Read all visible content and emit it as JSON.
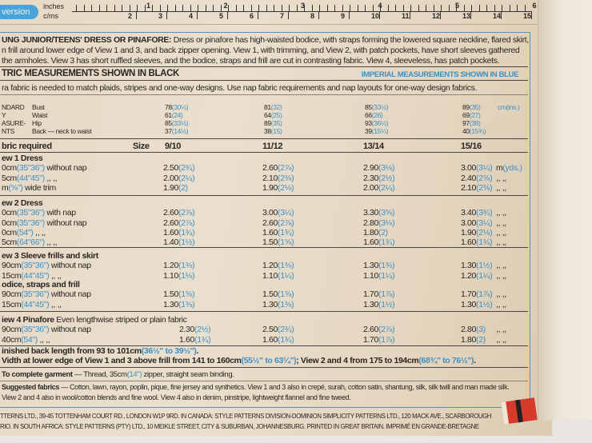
{
  "ruler": {
    "tab": "version",
    "inches_label": "inches",
    "cms_label": "c/ms",
    "inch_numbers": [
      "1",
      "2",
      "3",
      "4",
      "5",
      "6"
    ],
    "cm_numbers": [
      "2",
      "3",
      "4",
      "5",
      "6",
      "7",
      "8",
      "9",
      "10",
      "11",
      "12",
      "13",
      "14",
      "15"
    ]
  },
  "description": {
    "title": "UNG JUNIOR/TEENS' DRESS OR PINAFORE:",
    "line1": " Dress or pinafore has high-waisted bodice, with straps forming the lowered square neckline, flared skirt,",
    "line2": "n frill around lower edge of View 1 and 3, and back zipper opening. View 1, with trimming, and View 2, with patch pockets, have short sleeves gathered",
    "line3": "the armholes. View 3 has short ruffled sleeves, and the bodice, straps and frill are cut in contrasting fabric. View 4, sleeveless, has patch pockets."
  },
  "headings": {
    "metric": "TRIC MEASUREMENTS SHOWN IN BLACK",
    "imperial": "IMPERIAL MEASUREMENTS SHOWN IN BLUE",
    "note": "ra fabric is needed to match plaids, stripes and one-way designs. Use nap fabric requirements and nap layouts for one-way design fabrics."
  },
  "body_measurements": {
    "side_label": [
      "NDARD",
      "Y",
      "ASURE-",
      "NTS"
    ],
    "unit": "cm(ins.)",
    "rows": [
      {
        "label": "Bust",
        "values": [
          [
            "78",
            "(30½)"
          ],
          [
            "81",
            "(32)"
          ],
          [
            "85",
            "(33½)"
          ],
          [
            "89",
            "(35)"
          ]
        ]
      },
      {
        "label": "Waist",
        "values": [
          [
            "61",
            "(24)"
          ],
          [
            "64",
            "(25)"
          ],
          [
            "66",
            "(26)"
          ],
          [
            "69",
            "(27)"
          ]
        ]
      },
      {
        "label": "Hip",
        "values": [
          [
            "85",
            "(33½)"
          ],
          [
            "89",
            "(35)"
          ],
          [
            "93",
            "(36½)"
          ],
          [
            "97",
            "(38)"
          ]
        ]
      },
      {
        "label": "Back — neck to waist",
        "values": [
          [
            "37",
            "(14½)"
          ],
          [
            "38",
            "(15)"
          ],
          [
            "39",
            "(15¼)"
          ],
          [
            "40",
            "(15¾)"
          ]
        ]
      }
    ]
  },
  "fabric_table": {
    "title": "bric required",
    "size_label": "Size",
    "sizes": [
      "9/10",
      "11/12",
      "13/14",
      "15/16"
    ],
    "sections": [
      {
        "heading": "ew 1  Dress",
        "rows": [
          {
            "m": "0cm",
            "i": "(35\"36\")",
            "t": " without nap",
            "values": [
              [
                "2.50",
                "(2¾)"
              ],
              [
                "2.60",
                "(2⅞)"
              ],
              [
                "2.90",
                "(3⅛)"
              ],
              [
                "3.00",
                "(3¼)"
              ]
            ],
            "unit_m": "m",
            "unit_i": "(yds.)"
          },
          {
            "m": "5cm",
            "i": "(44\"45\")",
            "t": "    ,,    ,,",
            "values": [
              [
                "2.00",
                "(2¼)"
              ],
              [
                "2.10",
                "(2⅜)"
              ],
              [
                "2.30",
                "(2½)"
              ],
              [
                "2.40",
                "(2⅝)"
              ]
            ],
            "unit_m": ",,  ,,"
          },
          {
            "m": "m",
            "i": "(⅝\")",
            "t": " wide trim",
            "values": [
              [
                "1.90",
                "(2)"
              ],
              [
                "1.90",
                "(2⅛)"
              ],
              [
                "2.00",
                "(2¼)"
              ],
              [
                "2.10",
                "(2⅜)"
              ]
            ],
            "unit_m": ",,  ,,"
          }
        ]
      },
      {
        "heading": "ew 2  Dress",
        "rows": [
          {
            "m": "0cm",
            "i": "(35\"36\")",
            "t": " with nap",
            "values": [
              [
                "2.60",
                "(2⅞)"
              ],
              [
                "3.00",
                "(3¼)"
              ],
              [
                "3.30",
                "(3⅝)"
              ],
              [
                "3.40",
                "(3¾)"
              ]
            ],
            "unit_m": ",,  ,,"
          },
          {
            "m": "0cm",
            "i": "(35\"36\")",
            "t": " without nap",
            "values": [
              [
                "2.60",
                "(2⅞)"
              ],
              [
                "2.60",
                "(2⅞)"
              ],
              [
                "2.80",
                "(3⅛)"
              ],
              [
                "3.00",
                "(3¼)"
              ]
            ],
            "unit_m": ",,  ,,"
          },
          {
            "m": "0cm",
            "i": "(54\")",
            "t": "        ,,    ,,",
            "values": [
              [
                "1.60",
                "(1¾)"
              ],
              [
                "1.60",
                "(1¾)"
              ],
              [
                "1.80",
                "(2)"
              ],
              [
                "1.90",
                "(2⅛)"
              ]
            ],
            "unit_m": ",,  ,,"
          },
          {
            "m": "5cm",
            "i": "(64\"66\")",
            "t": "    ,,    ,,",
            "values": [
              [
                "1.40",
                "(1½)"
              ],
              [
                "1.50",
                "(1⅝)"
              ],
              [
                "1.60",
                "(1¾)"
              ],
              [
                "1.60",
                "(1¾)"
              ]
            ],
            "unit_m": ",,  ,,"
          }
        ]
      },
      {
        "heading": "ew 3  Sleeve frills and skirt",
        "rows": [
          {
            "m": "90cm",
            "i": "(35\"36\")",
            "t": " without nap",
            "values": [
              [
                "1.20",
                "(1⅜)"
              ],
              [
                "1.20",
                "(1⅜)"
              ],
              [
                "1.30",
                "(1⅜)"
              ],
              [
                "1.30",
                "(1½)"
              ]
            ],
            "unit_m": ",,  ,,"
          },
          {
            "m": "15cm",
            "i": "(44\"45\")",
            "t": "    ,,    ,,",
            "values": [
              [
                "1.10",
                "(1⅛)"
              ],
              [
                "1.10",
                "(1¼)"
              ],
              [
                "1.10",
                "(1¼)"
              ],
              [
                "1.20",
                "(1¼)"
              ]
            ],
            "unit_m": ",,  ,,"
          }
        ]
      },
      {
        "heading": "odice, straps and frill",
        "rows": [
          {
            "m": "90cm",
            "i": "(35\"36\")",
            "t": " without nap",
            "values": [
              [
                "1.50",
                "(1⅝)"
              ],
              [
                "1.50",
                "(1⅝)"
              ],
              [
                "1.70",
                "(1⅞)"
              ],
              [
                "1.70",
                "(1⅞)"
              ]
            ],
            "unit_m": ",,  ,,"
          },
          {
            "m": "15cm",
            "i": "(44\"45\")",
            "t": "    ,,    ,,",
            "values": [
              [
                "1.30",
                "(1⅜)"
              ],
              [
                "1.30",
                "(1⅜)"
              ],
              [
                "1.30",
                "(1½)"
              ],
              [
                "1.30",
                "(1½)"
              ]
            ],
            "unit_m": ",,  ,,"
          }
        ]
      },
      {
        "heading": "iew 4  Pinafore",
        "subheading": "  Even lengthwise striped or plain fabric",
        "rows": [
          {
            "m": "90cm",
            "i": "(35\"36\")",
            "t": " without nap",
            "values": [
              [
                "2.30",
                "(2½)"
              ],
              [
                "2.50",
                "(2¾)"
              ],
              [
                "2.60",
                "(2⅞)"
              ],
              [
                "2.80",
                "(3)"
              ]
            ],
            "unit_m": ",,  ,,"
          },
          {
            "m": "40cm",
            "i": "(54\")",
            "t": "        ,,    ,,",
            "values": [
              [
                "1.60",
                "(1¾)"
              ],
              [
                "1.60",
                "(1¾)"
              ],
              [
                "1.70",
                "(1⅞)"
              ],
              [
                "1.80",
                "(2)"
              ]
            ],
            "unit_m": ",,  ,,"
          }
        ]
      }
    ]
  },
  "finished": {
    "back_a": "inished back length from 93 to 101cm",
    "back_b": "(36½\" to 39½\")",
    "back_c": ".",
    "width_a": "Vidth at lower edge of View 1 and 3 above frill from 141 to 160cm",
    "width_b": "(55½\" to 63¼\")",
    "width_c": "; View 2 and 4 from 175 to 194cm",
    "width_d": "(68¾\" to 76½\")",
    "width_e": "."
  },
  "complete": {
    "label": "To complete garment",
    "a": " — Thread, 35cm",
    "b": "(14\")",
    "c": " zipper, straight seam binding."
  },
  "suggested": {
    "label": "Suggested fabrics",
    "line1": " — Cotton, lawn, rayon, poplin, pique, fine jersey and synthetics. View 1 and 3 also in crepé, surah, cotton satin, shantung, silk, silk twill and man made silk.",
    "line2": "View 2 and 4 also in wool/cotton blends and fine wool. View 4 also in denim, pinstripe, lightweight flannel and fine tweed."
  },
  "footer": {
    "line1": "TTERNS LTD., 39-45 TOTTENHAM COURT RD., LONDON W1P 9RD. IN CANADA: STYLE PATTERNS DIVISION-DOMINION SIMPLICITY PATTERNS LTD., 120 MACK AVE., SCARBOROUGH",
    "line2": "RIO. IN SOUTH AFRICA: STYLE PATTERNS (PTY) LTD., 10 MEIKLE STREET, CITY & SUBURBAN, JOHANNESBURG. PRINTED IN GREAT BRITAIN. IMPRIMÉ EN GRANDE-BRETAGNE"
  }
}
